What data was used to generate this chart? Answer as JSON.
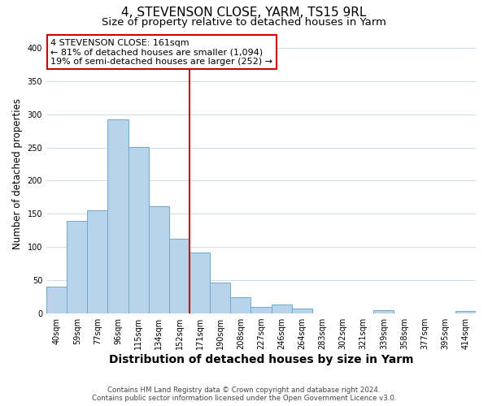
{
  "title": "4, STEVENSON CLOSE, YARM, TS15 9RL",
  "subtitle": "Size of property relative to detached houses in Yarm",
  "xlabel": "Distribution of detached houses by size in Yarm",
  "ylabel": "Number of detached properties",
  "bar_labels": [
    "40sqm",
    "59sqm",
    "77sqm",
    "96sqm",
    "115sqm",
    "134sqm",
    "152sqm",
    "171sqm",
    "190sqm",
    "208sqm",
    "227sqm",
    "246sqm",
    "264sqm",
    "283sqm",
    "302sqm",
    "321sqm",
    "339sqm",
    "358sqm",
    "377sqm",
    "395sqm",
    "414sqm"
  ],
  "bar_values": [
    40,
    140,
    155,
    292,
    251,
    161,
    113,
    92,
    46,
    25,
    10,
    13,
    8,
    0,
    0,
    0,
    5,
    0,
    0,
    0,
    4
  ],
  "bar_color": "#b8d4ea",
  "bar_edge_color": "#6aaad4",
  "vline_x_index": 7,
  "vline_color": "#cc0000",
  "annotation_title": "4 STEVENSON CLOSE: 161sqm",
  "annotation_line1": "← 81% of detached houses are smaller (1,094)",
  "annotation_line2": "19% of semi-detached houses are larger (252) →",
  "annotation_box_color": "#ffffff",
  "annotation_box_edge": "#cc0000",
  "ylim": [
    0,
    420
  ],
  "yticks": [
    0,
    50,
    100,
    150,
    200,
    250,
    300,
    350,
    400
  ],
  "title_fontsize": 11,
  "subtitle_fontsize": 9.5,
  "xlabel_fontsize": 10,
  "ylabel_fontsize": 8.5,
  "tick_fontsize": 7,
  "footer1": "Contains HM Land Registry data © Crown copyright and database right 2024.",
  "footer2": "Contains public sector information licensed under the Open Government Licence v3.0.",
  "background_color": "#ffffff",
  "grid_color": "#d0dce8"
}
